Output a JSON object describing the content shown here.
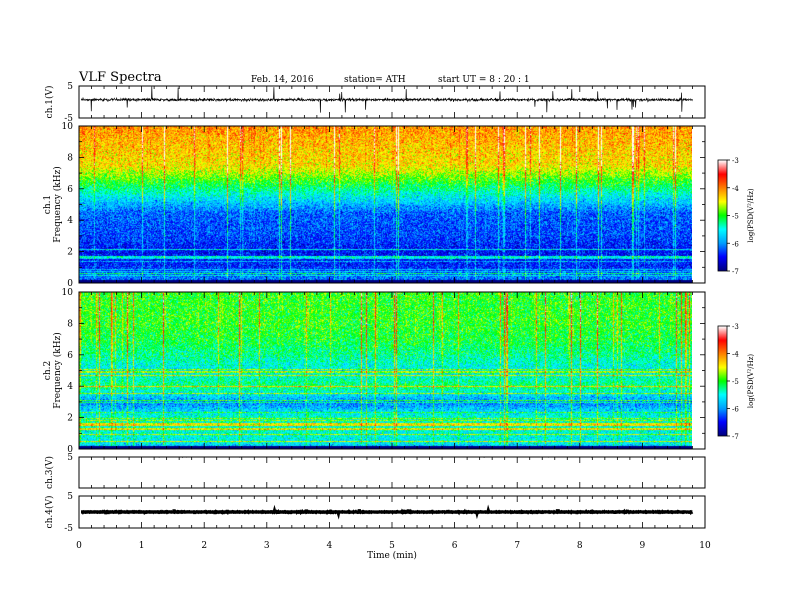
{
  "header": {
    "title": "VLF  Spectra",
    "date": "Feb. 14, 2016",
    "station": "station= ATH",
    "start_ut": "start  UT  =   8  : 20 : 1"
  },
  "chart_data": [
    {
      "type": "line",
      "panel": "ch1-waveform",
      "ylabel": "ch.1(V)",
      "ylim": [
        -5,
        5
      ],
      "yticks": [
        "5",
        "-5"
      ],
      "xlim": [
        0,
        10
      ],
      "baseline_v": 0.7,
      "amplitude_v": 1.2,
      "x_end_min": 9.8
    },
    {
      "type": "heatmap",
      "panel": "ch1-spectrogram",
      "ylabel_channel": "ch.1",
      "ylabel": "Frequency  (kHz)",
      "ylim": [
        0,
        10
      ],
      "yticks": [
        "0",
        "2",
        "4",
        "6",
        "8",
        "10"
      ],
      "xlim": [
        0,
        10
      ],
      "x_end_min": 9.8,
      "colorbar": {
        "label": "log(PSD(V²/Hz)",
        "range": [
          -7,
          -3
        ],
        "ticks": [
          "-3",
          "-4",
          "-5",
          "-6",
          "-7"
        ]
      },
      "level_profile": [
        [
          0,
          -6.3
        ],
        [
          0.4,
          -6.1
        ],
        [
          1.0,
          -6.4
        ],
        [
          2.0,
          -6.5
        ],
        [
          3.0,
          -6.3
        ],
        [
          4.5,
          -6.2
        ],
        [
          5.5,
          -5.6
        ],
        [
          6.5,
          -5.0
        ],
        [
          7.5,
          -4.4
        ],
        [
          8.5,
          -4.3
        ],
        [
          10,
          -4.1
        ]
      ]
    },
    {
      "type": "heatmap",
      "panel": "ch2-spectrogram",
      "ylabel_channel": "ch.2",
      "ylabel": "Frequency  (kHz)",
      "ylim": [
        0,
        10
      ],
      "yticks": [
        "0",
        "2",
        "4",
        "6",
        "8",
        "10"
      ],
      "xlim": [
        0,
        10
      ],
      "x_end_min": 9.8,
      "colorbar": {
        "label": "log(PSD(V²/Hz)",
        "range": [
          -7,
          -3
        ],
        "ticks": [
          "-3",
          "-4",
          "-5",
          "-6",
          "-7"
        ]
      },
      "level_profile": [
        [
          0,
          -6.0
        ],
        [
          0.4,
          -5.6
        ],
        [
          1.0,
          -5.5
        ],
        [
          2.0,
          -5.4
        ],
        [
          3.0,
          -6.1
        ],
        [
          4.0,
          -5.2
        ],
        [
          5.0,
          -5.6
        ],
        [
          6.0,
          -5.3
        ],
        [
          7.0,
          -5.1
        ],
        [
          8.0,
          -5.0
        ],
        [
          10,
          -5.0
        ]
      ]
    },
    {
      "type": "line",
      "panel": "ch3-waveform",
      "ylabel": "ch.3(V)",
      "ylim": [
        -5,
        5
      ],
      "yticks": [
        "5"
      ],
      "xlim": [
        0,
        10
      ],
      "baseline_v": 5,
      "amplitude_v": 0.05,
      "x_end_min": 9.8
    },
    {
      "type": "line",
      "panel": "ch4-waveform",
      "ylabel": "ch.4(V)",
      "ylim": [
        -5,
        5
      ],
      "yticks": [
        "5",
        "-5"
      ],
      "xlim": [
        0,
        10
      ],
      "baseline_v": 0,
      "amplitude_v": 0.25,
      "x_end_min": 9.8,
      "xlabel": "Time  (min)",
      "xticks": [
        "0",
        "1",
        "2",
        "3",
        "4",
        "5",
        "6",
        "7",
        "8",
        "9",
        "10"
      ]
    }
  ],
  "colors": {
    "colormap": [
      "#000080",
      "#0000ff",
      "#00a0ff",
      "#00ffff",
      "#00ff00",
      "#ffff00",
      "#ff8000",
      "#ff0000",
      "#ffffff"
    ],
    "line": "#000000"
  }
}
